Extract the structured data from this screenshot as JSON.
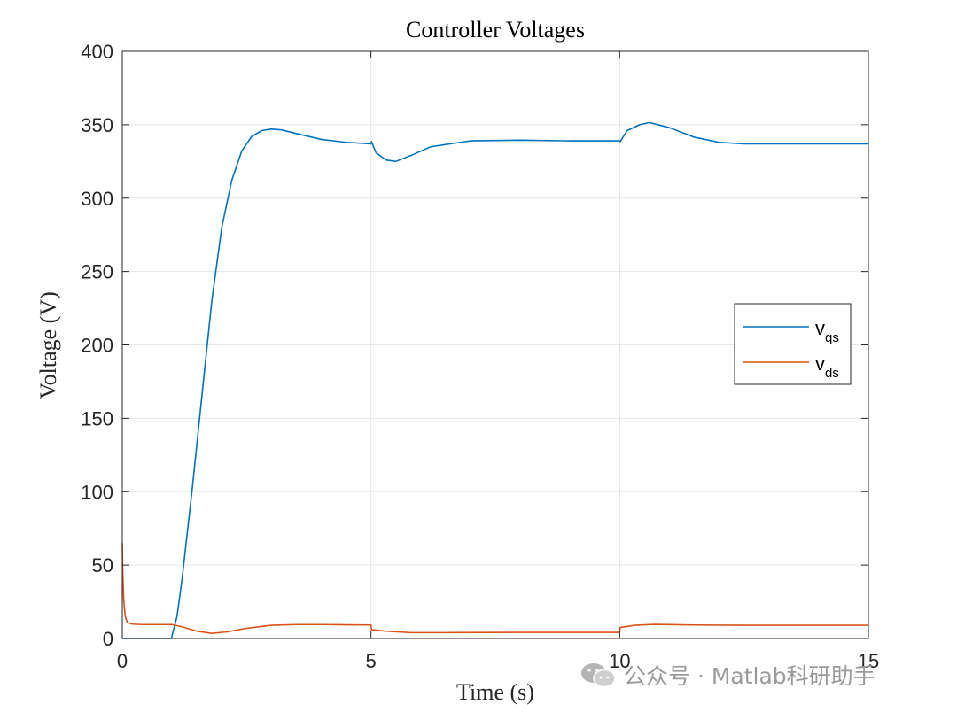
{
  "chart_data": {
    "type": "line",
    "title": "Controller Voltages",
    "xlabel": "Time (s)",
    "ylabel": "Voltage (V)",
    "xlim": [
      0,
      15
    ],
    "ylim": [
      0,
      400
    ],
    "xticks": [
      "0",
      "5",
      "10",
      "15"
    ],
    "yticks": [
      "0",
      "50",
      "100",
      "150",
      "200",
      "250",
      "300",
      "350",
      "400"
    ],
    "grid": true,
    "legend": {
      "placement": "right"
    },
    "series": [
      {
        "name": "v_qs",
        "legend_main": "v",
        "legend_sub": "qs",
        "color": "#0072BD",
        "x": [
          0,
          0.99,
          1.0,
          1.1,
          1.2,
          1.4,
          1.6,
          1.8,
          2.0,
          2.2,
          2.4,
          2.6,
          2.8,
          3.0,
          3.2,
          3.5,
          4.0,
          4.5,
          5.0,
          5.01,
          5.1,
          5.3,
          5.5,
          5.8,
          6.2,
          7.0,
          8.0,
          9.0,
          10.0,
          10.01,
          10.15,
          10.4,
          10.6,
          11.0,
          11.5,
          12.0,
          12.5,
          13.0,
          14.0,
          15.0
        ],
        "y": [
          0,
          0,
          2,
          15,
          40,
          100,
          165,
          230,
          280,
          312,
          332,
          342,
          346,
          347,
          346.5,
          344,
          340,
          338,
          337,
          338.5,
          331,
          326,
          325,
          329,
          335,
          339,
          339.5,
          339,
          339,
          338.5,
          346,
          350,
          351.5,
          348,
          341.5,
          338,
          337,
          337,
          337,
          337
        ]
      },
      {
        "name": "v_ds",
        "legend_main": "v",
        "legend_sub": "ds",
        "color": "#D95319",
        "x": [
          0,
          0.01,
          0.03,
          0.06,
          0.1,
          0.2,
          0.4,
          0.7,
          1.0,
          1.2,
          1.5,
          1.8,
          2.1,
          2.5,
          3.0,
          3.5,
          4.0,
          4.5,
          5.0,
          5.01,
          5.3,
          5.8,
          6.5,
          8.0,
          10.0,
          10.01,
          10.3,
          10.7,
          11.5,
          12.5,
          14.0,
          15.0
        ],
        "y": [
          65,
          45,
          25,
          15,
          11,
          9.8,
          9.5,
          9.5,
          9.5,
          8,
          5,
          3.5,
          4.5,
          7,
          9,
          9.5,
          9.5,
          9.3,
          9.2,
          6,
          5,
          4,
          4,
          4.2,
          4.2,
          7.5,
          9,
          9.6,
          9.2,
          9,
          9,
          9
        ]
      }
    ]
  },
  "watermark": {
    "text": "公众号 · Matlab科研助手"
  }
}
